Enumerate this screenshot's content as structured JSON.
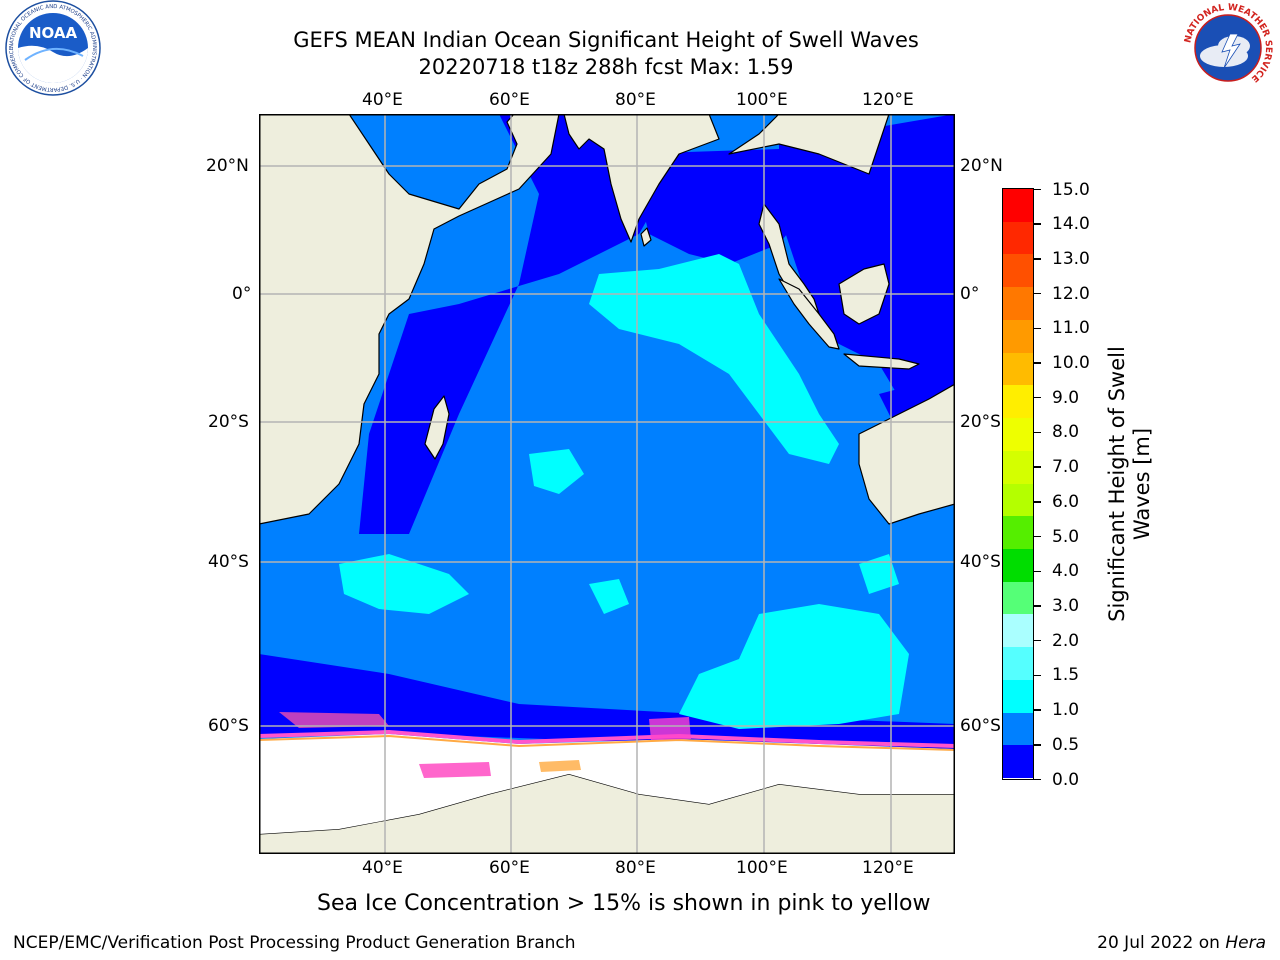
{
  "header": {
    "title_line1": "GEFS MEAN Indian Ocean Significant Height of Swell Waves",
    "title_line2": "20220718 t18z 288h fcst   Max: 1.59"
  },
  "logos": {
    "noaa": {
      "text": "NOAA",
      "ring_text": "NATIONAL OCEANIC AND ATMOSPHERIC ADMINISTRATION · U.S. DEPARTMENT OF COMMERCE"
    },
    "nws": {
      "ring_text": "NATIONAL WEATHER SERVICE"
    }
  },
  "map": {
    "lon_labels": [
      "40°E",
      "60°E",
      "80°E",
      "100°E",
      "120°E"
    ],
    "lat_labels": [
      "20°N",
      "0°",
      "20°S",
      "40°S",
      "60°S"
    ],
    "ocean_color": "#0080ff",
    "land_color": "#eeeedd",
    "ice_color": "#ffffff"
  },
  "colorbar": {
    "label": "Significant Height of Swell Waves [m]",
    "ticks": [
      "15.0",
      "14.0",
      "13.0",
      "12.0",
      "11.0",
      "10.0",
      "9.0",
      "8.0",
      "7.0",
      "6.0",
      "5.0",
      "4.0",
      "3.0",
      "2.0",
      "1.5",
      "1.0",
      "0.5",
      "0.0"
    ],
    "colors_top_to_bottom": [
      "#ff0000",
      "#ff2800",
      "#ff5000",
      "#ff7800",
      "#ff9a00",
      "#ffbb00",
      "#ffee00",
      "#eeff00",
      "#d4ff00",
      "#b4ff00",
      "#55ee00",
      "#00dd00",
      "#55ff77",
      "#aaffff",
      "#55ffff",
      "#00ffff",
      "#0080ff",
      "#0000ff"
    ]
  },
  "caption": "Sea Ice Concentration > 15% is shown in pink to yellow",
  "footer": {
    "left": "NCEP/EMC/Verification Post Processing Product Generation Branch",
    "right_date": "20 Jul 2022 on ",
    "right_host": "Hera"
  }
}
